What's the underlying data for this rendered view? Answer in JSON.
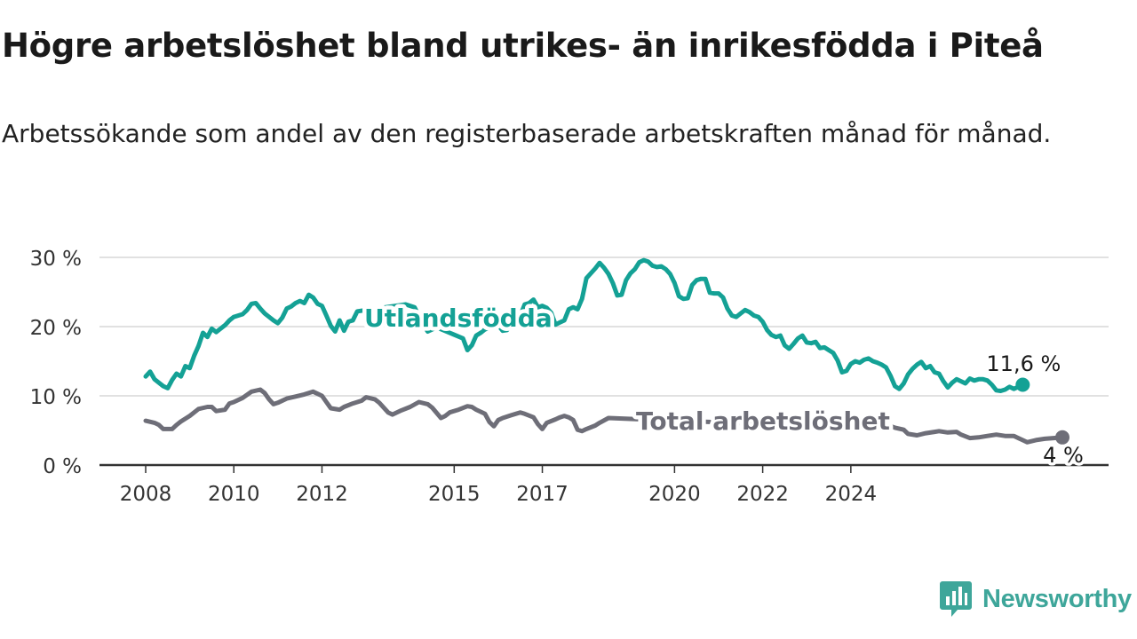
{
  "title": "Högre arbetslöshet bland utrikes- än inrikesfödda i Piteå",
  "subtitle": "Arbetssökande som andel av den registerbaserade arbetskraften månad för månad.",
  "brand": {
    "name": "Newsworthy",
    "icon": "newsworthy-chart-bubble-icon"
  },
  "colors": {
    "foreign_born": "#14a195",
    "total": "#6e6e78",
    "grid": "#d7d7d7",
    "axis": "#333333"
  },
  "chart_data": {
    "type": "line",
    "x_ticks": [
      "2008",
      "2010",
      "2012",
      "2015",
      "2017",
      "2020",
      "2022",
      "2024"
    ],
    "y_ticks": [
      "0 %",
      "10 %",
      "20 %",
      "30 %"
    ],
    "ylim": [
      0,
      30
    ],
    "grid": true,
    "series": [
      {
        "name": "Utlandsfödda",
        "end_label": "11,6 %",
        "points": [
          [
            2008.0,
            12.8
          ],
          [
            2008.1,
            13.5
          ],
          [
            2008.2,
            12.4
          ],
          [
            2008.4,
            11.4
          ],
          [
            2008.5,
            11.1
          ],
          [
            2008.6,
            12.3
          ],
          [
            2008.7,
            13.2
          ],
          [
            2008.8,
            12.8
          ],
          [
            2008.9,
            14.3
          ],
          [
            2009.0,
            14.0
          ],
          [
            2009.1,
            15.8
          ],
          [
            2009.2,
            17.2
          ],
          [
            2009.3,
            19.1
          ],
          [
            2009.4,
            18.5
          ],
          [
            2009.5,
            19.7
          ],
          [
            2009.6,
            19.2
          ],
          [
            2009.7,
            19.7
          ],
          [
            2009.8,
            20.2
          ],
          [
            2009.9,
            20.9
          ],
          [
            2010.0,
            21.4
          ],
          [
            2010.2,
            21.8
          ],
          [
            2010.3,
            22.4
          ],
          [
            2010.4,
            23.3
          ],
          [
            2010.5,
            23.4
          ],
          [
            2010.6,
            22.6
          ],
          [
            2010.7,
            21.9
          ],
          [
            2010.8,
            21.4
          ],
          [
            2010.9,
            20.9
          ],
          [
            2011.0,
            20.5
          ],
          [
            2011.1,
            21.3
          ],
          [
            2011.2,
            22.6
          ],
          [
            2011.3,
            22.9
          ],
          [
            2011.4,
            23.4
          ],
          [
            2011.5,
            23.7
          ],
          [
            2011.6,
            23.4
          ],
          [
            2011.7,
            24.6
          ],
          [
            2011.8,
            24.2
          ],
          [
            2011.9,
            23.3
          ],
          [
            2012.0,
            23.0
          ],
          [
            2012.1,
            21.6
          ],
          [
            2012.2,
            20.1
          ],
          [
            2012.3,
            19.3
          ],
          [
            2012.4,
            20.9
          ],
          [
            2012.5,
            19.4
          ],
          [
            2012.6,
            20.7
          ],
          [
            2012.7,
            20.9
          ],
          [
            2012.8,
            22.2
          ],
          [
            2013.9,
            23.2
          ],
          [
            2014.1,
            22.8
          ],
          [
            2014.3,
            20.3
          ],
          [
            2014.4,
            19.3
          ],
          [
            2014.6,
            19.9
          ],
          [
            2015.2,
            18.3
          ],
          [
            2015.3,
            16.6
          ],
          [
            2015.4,
            17.3
          ],
          [
            2015.5,
            18.7
          ],
          [
            2015.6,
            19.1
          ],
          [
            2015.7,
            19.6
          ],
          [
            2016.0,
            20.2
          ],
          [
            2016.1,
            19.4
          ],
          [
            2016.2,
            19.5
          ],
          [
            2016.3,
            20.5
          ],
          [
            2016.4,
            21.4
          ],
          [
            2016.5,
            21.6
          ],
          [
            2016.6,
            23.2
          ],
          [
            2016.7,
            23.4
          ],
          [
            2016.8,
            23.9
          ],
          [
            2016.9,
            22.8
          ],
          [
            2017.0,
            23.0
          ],
          [
            2017.1,
            22.7
          ],
          [
            2017.2,
            22.0
          ],
          [
            2017.3,
            20.3
          ],
          [
            2017.4,
            20.6
          ],
          [
            2017.5,
            20.9
          ],
          [
            2017.6,
            22.5
          ],
          [
            2017.7,
            22.8
          ],
          [
            2017.8,
            22.5
          ],
          [
            2017.9,
            24.0
          ],
          [
            2018.0,
            27.0
          ],
          [
            2018.2,
            28.4
          ],
          [
            2018.3,
            29.2
          ],
          [
            2018.4,
            28.5
          ],
          [
            2018.5,
            27.6
          ],
          [
            2018.6,
            26.3
          ],
          [
            2018.7,
            24.5
          ],
          [
            2018.8,
            24.6
          ],
          [
            2018.9,
            26.7
          ],
          [
            2019.0,
            27.7
          ],
          [
            2019.1,
            28.3
          ],
          [
            2019.2,
            29.3
          ],
          [
            2019.3,
            29.6
          ],
          [
            2019.4,
            29.4
          ],
          [
            2019.5,
            28.8
          ],
          [
            2019.6,
            28.6
          ],
          [
            2019.7,
            28.7
          ],
          [
            2019.8,
            28.3
          ],
          [
            2019.9,
            27.6
          ],
          [
            2020.0,
            26.3
          ],
          [
            2020.1,
            24.4
          ],
          [
            2020.2,
            24.0
          ],
          [
            2020.3,
            24.1
          ],
          [
            2020.4,
            26.0
          ],
          [
            2020.5,
            26.7
          ],
          [
            2020.6,
            26.9
          ],
          [
            2020.7,
            26.9
          ],
          [
            2020.8,
            24.9
          ],
          [
            2020.9,
            24.8
          ],
          [
            2021.0,
            24.8
          ],
          [
            2021.1,
            24.2
          ],
          [
            2021.2,
            22.6
          ],
          [
            2021.3,
            21.6
          ],
          [
            2021.4,
            21.4
          ],
          [
            2021.5,
            21.9
          ],
          [
            2021.6,
            22.4
          ],
          [
            2021.7,
            22.1
          ],
          [
            2021.8,
            21.6
          ],
          [
            2021.9,
            21.4
          ],
          [
            2022.0,
            20.7
          ],
          [
            2022.1,
            19.5
          ],
          [
            2022.2,
            18.8
          ],
          [
            2022.3,
            18.5
          ],
          [
            2022.4,
            18.7
          ],
          [
            2022.5,
            17.3
          ],
          [
            2022.6,
            16.8
          ],
          [
            2022.7,
            17.5
          ],
          [
            2022.8,
            18.3
          ],
          [
            2022.9,
            18.7
          ],
          [
            2023.0,
            17.7
          ],
          [
            2023.1,
            17.6
          ],
          [
            2023.2,
            17.8
          ],
          [
            2023.3,
            16.9
          ],
          [
            2023.4,
            17.0
          ],
          [
            2023.5,
            16.6
          ],
          [
            2023.6,
            16.2
          ],
          [
            2023.7,
            15.1
          ],
          [
            2023.8,
            13.4
          ],
          [
            2023.9,
            13.6
          ],
          [
            2024.0,
            14.6
          ],
          [
            2024.1,
            15.0
          ],
          [
            2024.2,
            14.8
          ],
          [
            2024.3,
            15.2
          ],
          [
            2024.4,
            15.4
          ],
          [
            2024.5,
            15.0
          ],
          [
            2024.6,
            14.8
          ],
          [
            2024.7,
            14.5
          ],
          [
            2024.8,
            14.1
          ],
          [
            2024.9,
            12.9
          ],
          [
            2025.0,
            11.4
          ],
          [
            2025.1,
            11.0
          ],
          [
            2025.2,
            11.8
          ],
          [
            2025.3,
            13.1
          ],
          [
            2025.4,
            13.9
          ],
          [
            2025.5,
            14.5
          ],
          [
            2025.6,
            14.9
          ],
          [
            2025.7,
            14.0
          ],
          [
            2025.8,
            14.3
          ],
          [
            2025.9,
            13.4
          ],
          [
            2026.0,
            13.2
          ],
          [
            2026.1,
            12.1
          ],
          [
            2026.2,
            11.2
          ],
          [
            2026.3,
            11.9
          ],
          [
            2026.4,
            12.4
          ],
          [
            2026.5,
            12.1
          ],
          [
            2026.6,
            11.8
          ],
          [
            2026.7,
            12.5
          ],
          [
            2026.8,
            12.2
          ],
          [
            2026.9,
            12.4
          ],
          [
            2027.0,
            12.4
          ],
          [
            2027.1,
            12.2
          ],
          [
            2027.2,
            11.6
          ],
          [
            2027.3,
            10.8
          ],
          [
            2027.4,
            10.7
          ],
          [
            2027.5,
            10.9
          ],
          [
            2027.6,
            11.3
          ],
          [
            2027.7,
            11.0
          ],
          [
            2027.8,
            11.3
          ],
          [
            2027.9,
            11.6
          ]
        ]
      },
      {
        "name": "Total arbetslöshet",
        "end_label": "4 %",
        "points": [
          [
            2008.0,
            6.4
          ],
          [
            2008.2,
            6.1
          ],
          [
            2008.3,
            5.8
          ],
          [
            2008.4,
            5.2
          ],
          [
            2008.6,
            5.2
          ],
          [
            2008.7,
            5.8
          ],
          [
            2008.8,
            6.3
          ],
          [
            2009.0,
            7.1
          ],
          [
            2009.2,
            8.1
          ],
          [
            2009.4,
            8.4
          ],
          [
            2009.5,
            8.4
          ],
          [
            2009.6,
            7.8
          ],
          [
            2009.8,
            8.0
          ],
          [
            2009.9,
            8.9
          ],
          [
            2010.0,
            9.1
          ],
          [
            2010.2,
            9.7
          ],
          [
            2010.4,
            10.6
          ],
          [
            2010.6,
            10.9
          ],
          [
            2010.7,
            10.4
          ],
          [
            2010.8,
            9.5
          ],
          [
            2010.9,
            8.8
          ],
          [
            2011.0,
            9.0
          ],
          [
            2011.2,
            9.6
          ],
          [
            2011.4,
            9.9
          ],
          [
            2011.6,
            10.2
          ],
          [
            2011.8,
            10.6
          ],
          [
            2012.0,
            10.0
          ],
          [
            2012.1,
            9.1
          ],
          [
            2012.2,
            8.2
          ],
          [
            2012.4,
            8.0
          ],
          [
            2012.5,
            8.4
          ],
          [
            2012.7,
            8.9
          ],
          [
            2012.9,
            9.3
          ],
          [
            2013.0,
            9.8
          ],
          [
            2013.2,
            9.5
          ],
          [
            2013.3,
            9.0
          ],
          [
            2013.5,
            7.6
          ],
          [
            2013.6,
            7.3
          ],
          [
            2013.8,
            7.9
          ],
          [
            2014.0,
            8.4
          ],
          [
            2014.2,
            9.1
          ],
          [
            2014.4,
            8.8
          ],
          [
            2014.5,
            8.3
          ],
          [
            2014.7,
            6.8
          ],
          [
            2014.8,
            7.1
          ],
          [
            2014.9,
            7.6
          ],
          [
            2015.1,
            8.0
          ],
          [
            2015.3,
            8.5
          ],
          [
            2015.4,
            8.4
          ],
          [
            2015.5,
            8.0
          ],
          [
            2015.7,
            7.4
          ],
          [
            2015.8,
            6.2
          ],
          [
            2015.9,
            5.6
          ],
          [
            2016.0,
            6.5
          ],
          [
            2016.1,
            6.8
          ],
          [
            2016.3,
            7.2
          ],
          [
            2016.5,
            7.6
          ],
          [
            2016.6,
            7.4
          ],
          [
            2016.8,
            6.9
          ],
          [
            2016.9,
            5.9
          ],
          [
            2017.0,
            5.2
          ],
          [
            2017.1,
            6.1
          ],
          [
            2017.3,
            6.6
          ],
          [
            2017.4,
            6.9
          ],
          [
            2017.5,
            7.1
          ],
          [
            2017.6,
            6.9
          ],
          [
            2017.7,
            6.5
          ],
          [
            2017.8,
            5.1
          ],
          [
            2017.9,
            4.9
          ],
          [
            2018.0,
            5.2
          ],
          [
            2018.2,
            5.7
          ],
          [
            2018.3,
            6.1
          ],
          [
            2018.5,
            6.8
          ],
          [
            2024.5,
            5.3
          ],
          [
            2024.7,
            5.4
          ],
          [
            2024.9,
            5.6
          ],
          [
            2025.0,
            5.4
          ],
          [
            2025.2,
            5.1
          ],
          [
            2025.3,
            4.5
          ],
          [
            2025.5,
            4.3
          ],
          [
            2025.7,
            4.6
          ],
          [
            2025.9,
            4.8
          ],
          [
            2026.0,
            4.9
          ],
          [
            2026.2,
            4.7
          ],
          [
            2026.4,
            4.8
          ],
          [
            2026.5,
            4.4
          ],
          [
            2026.7,
            3.9
          ],
          [
            2026.9,
            4.0
          ],
          [
            2027.1,
            4.2
          ],
          [
            2027.3,
            4.4
          ],
          [
            2027.5,
            4.2
          ],
          [
            2027.7,
            4.2
          ],
          [
            2027.8,
            3.9
          ],
          [
            2027.9,
            3.6
          ],
          [
            2028.0,
            3.3
          ],
          [
            2028.2,
            3.6
          ],
          [
            2028.4,
            3.8
          ],
          [
            2028.6,
            3.9
          ],
          [
            2028.8,
            4.0
          ]
        ]
      }
    ]
  }
}
